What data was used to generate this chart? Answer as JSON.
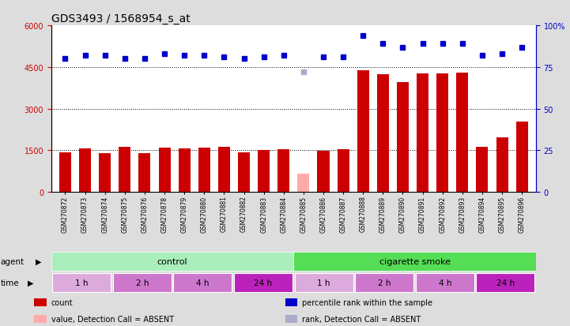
{
  "title": "GDS3493 / 1568954_s_at",
  "samples": [
    "GSM270872",
    "GSM270873",
    "GSM270874",
    "GSM270875",
    "GSM270876",
    "GSM270878",
    "GSM270879",
    "GSM270880",
    "GSM270881",
    "GSM270882",
    "GSM270883",
    "GSM270884",
    "GSM270885",
    "GSM270886",
    "GSM270887",
    "GSM270888",
    "GSM270889",
    "GSM270890",
    "GSM270891",
    "GSM270892",
    "GSM270893",
    "GSM270894",
    "GSM270895",
    "GSM270896"
  ],
  "counts": [
    1420,
    1560,
    1390,
    1620,
    1390,
    1600,
    1560,
    1600,
    1630,
    1440,
    1500,
    1550,
    650,
    1490,
    1530,
    4380,
    4250,
    3950,
    4270,
    4270,
    4290,
    1620,
    1960,
    2550
  ],
  "absent_count_indices": [
    12
  ],
  "absent_count_color": "#ffaaaa",
  "percentile_ranks": [
    80,
    82,
    82,
    80,
    80,
    83,
    82,
    82,
    81,
    80,
    81,
    82,
    null,
    81,
    81,
    94,
    89,
    87,
    89,
    89,
    89,
    82,
    83,
    87
  ],
  "absent_rank_indices": [
    12
  ],
  "absent_rank_values": [
    72
  ],
  "bar_color": "#cc0000",
  "rank_color": "#0000cc",
  "absent_rank_color": "#aaaacc",
  "left_ylim": [
    0,
    6000
  ],
  "right_ylim": [
    0,
    100
  ],
  "left_yticks": [
    0,
    1500,
    3000,
    4500,
    6000
  ],
  "right_yticks": [
    0,
    25,
    50,
    75,
    100
  ],
  "right_yticklabels": [
    "0",
    "25",
    "50",
    "75",
    "100%"
  ],
  "grid_values": [
    1500,
    3000,
    4500
  ],
  "agent_control_color": "#aaeebb",
  "agent_smoke_color": "#55dd55",
  "time_colors": [
    "#ddaadd",
    "#cc77cc",
    "#cc77cc",
    "#cc22cc",
    "#ddaadd",
    "#cc77cc",
    "#cc77cc",
    "#cc22cc"
  ],
  "bg_color": "#dddddd",
  "plot_bg_color": "#ffffff",
  "title_fontsize": 10,
  "tick_label_fontsize": 7,
  "rank_marker_size": 4
}
